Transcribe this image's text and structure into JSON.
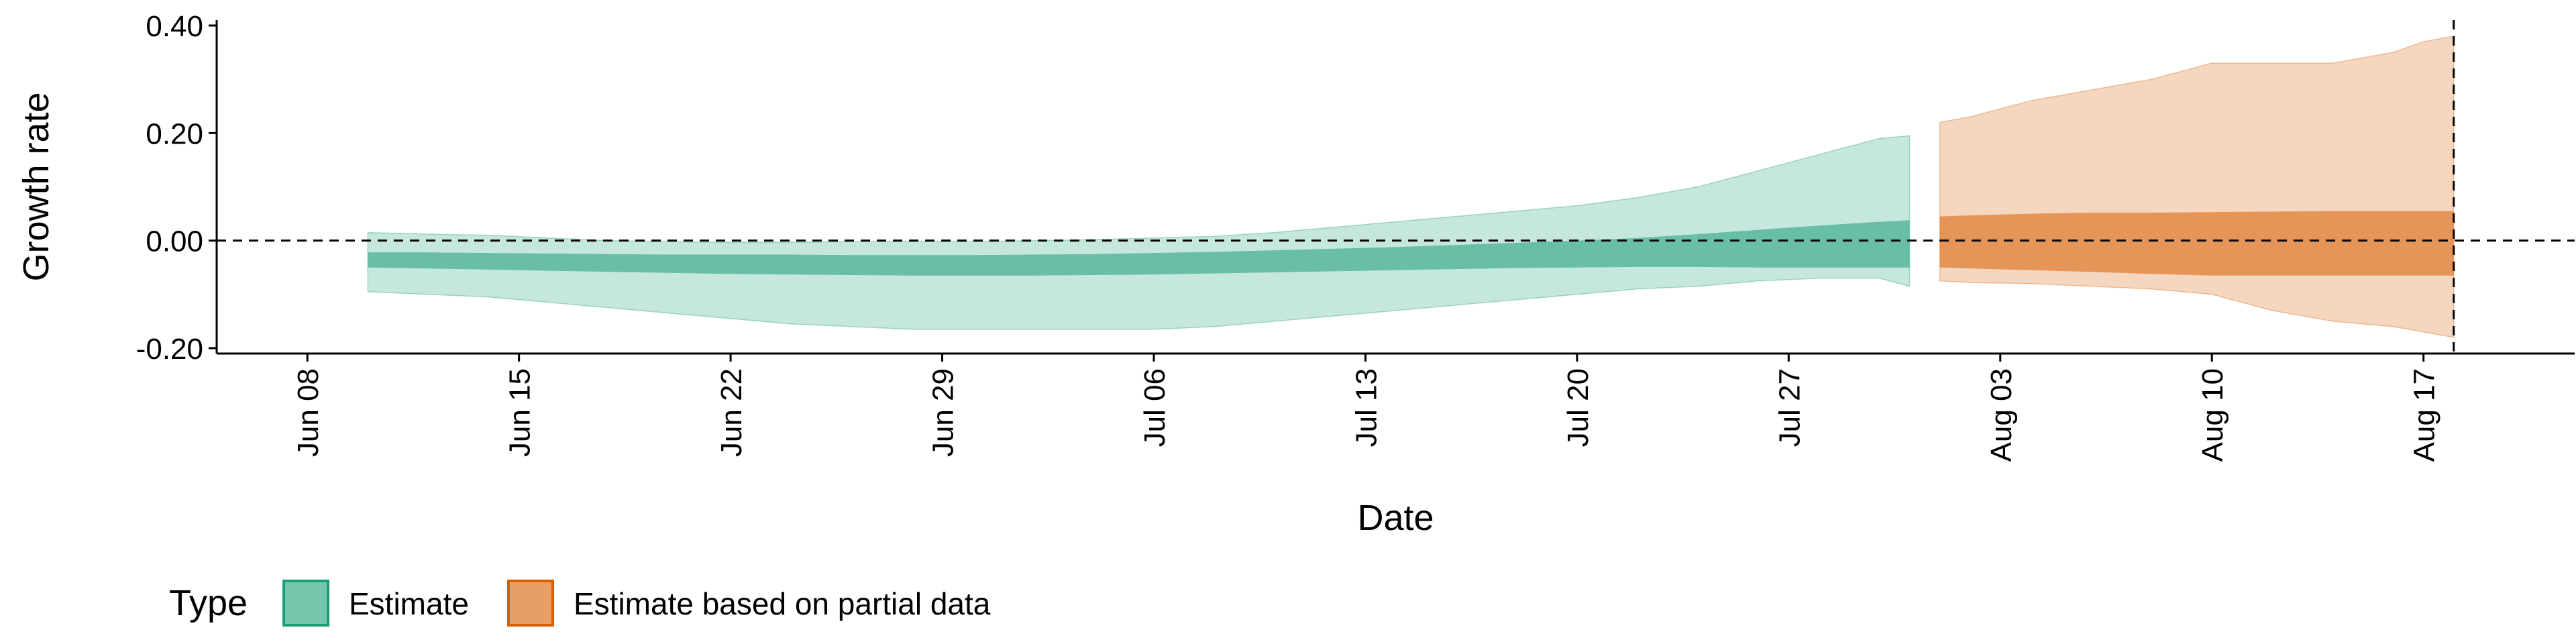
{
  "chart_data": {
    "type": "area",
    "xlabel": "Date",
    "ylabel": "Growth rate",
    "x_type": "date",
    "xlim": [
      "2020-06-05",
      "2020-08-22"
    ],
    "ylim": [
      -0.21,
      0.41
    ],
    "x_ticks": [
      {
        "date": "2020-06-08",
        "label": "Jun 08"
      },
      {
        "date": "2020-06-15",
        "label": "Jun 15"
      },
      {
        "date": "2020-06-22",
        "label": "Jun 22"
      },
      {
        "date": "2020-06-29",
        "label": "Jun 29"
      },
      {
        "date": "2020-07-06",
        "label": "Jul 06"
      },
      {
        "date": "2020-07-13",
        "label": "Jul 13"
      },
      {
        "date": "2020-07-20",
        "label": "Jul 20"
      },
      {
        "date": "2020-07-27",
        "label": "Jul 27"
      },
      {
        "date": "2020-08-03",
        "label": "Aug 03"
      },
      {
        "date": "2020-08-10",
        "label": "Aug 10"
      },
      {
        "date": "2020-08-17",
        "label": "Aug 17"
      }
    ],
    "y_ticks": [
      {
        "value": 0.4,
        "label": "0.40"
      },
      {
        "value": 0.2,
        "label": "0.20"
      },
      {
        "value": 0.0,
        "label": "0.00"
      },
      {
        "value": -0.2,
        "label": "-0.20"
      }
    ],
    "hline": 0.0,
    "vline": "2020-08-18",
    "grid": false,
    "legend": {
      "position": "bottom-left",
      "title": "Type",
      "entries": [
        {
          "label": "Estimate",
          "color": "#1b9e77"
        },
        {
          "label": "Estimate based on partial data",
          "color": "#d95f02"
        }
      ]
    },
    "series": [
      {
        "name": "Estimate",
        "color": "#1b9e77",
        "x": [
          "2020-06-10",
          "2020-06-12",
          "2020-06-14",
          "2020-06-16",
          "2020-06-18",
          "2020-06-20",
          "2020-06-22",
          "2020-06-24",
          "2020-06-26",
          "2020-06-28",
          "2020-06-30",
          "2020-07-02",
          "2020-07-04",
          "2020-07-06",
          "2020-07-08",
          "2020-07-10",
          "2020-07-12",
          "2020-07-14",
          "2020-07-16",
          "2020-07-18",
          "2020-07-20",
          "2020-07-22",
          "2020-07-24",
          "2020-07-26",
          "2020-07-28",
          "2020-07-30",
          "2020-07-31"
        ],
        "outer_upper": [
          0.015,
          0.012,
          0.01,
          0.005,
          0.0,
          -0.002,
          -0.003,
          -0.003,
          -0.002,
          -0.002,
          -0.002,
          0.0,
          0.002,
          0.005,
          0.008,
          0.015,
          0.025,
          0.035,
          0.045,
          0.055,
          0.065,
          0.08,
          0.1,
          0.13,
          0.16,
          0.19,
          0.195
        ],
        "inner_upper": [
          -0.022,
          -0.022,
          -0.023,
          -0.024,
          -0.025,
          -0.026,
          -0.026,
          -0.026,
          -0.027,
          -0.027,
          -0.027,
          -0.026,
          -0.025,
          -0.023,
          -0.021,
          -0.018,
          -0.015,
          -0.012,
          -0.008,
          -0.004,
          0.0,
          0.005,
          0.012,
          0.02,
          0.028,
          0.035,
          0.038
        ],
        "inner_lower": [
          -0.05,
          -0.052,
          -0.054,
          -0.056,
          -0.058,
          -0.06,
          -0.062,
          -0.063,
          -0.064,
          -0.065,
          -0.065,
          -0.065,
          -0.064,
          -0.063,
          -0.061,
          -0.059,
          -0.057,
          -0.055,
          -0.053,
          -0.051,
          -0.05,
          -0.049,
          -0.049,
          -0.05,
          -0.05,
          -0.05,
          -0.05
        ],
        "outer_lower": [
          -0.095,
          -0.1,
          -0.105,
          -0.115,
          -0.125,
          -0.135,
          -0.145,
          -0.155,
          -0.16,
          -0.165,
          -0.165,
          -0.165,
          -0.165,
          -0.165,
          -0.16,
          -0.15,
          -0.14,
          -0.13,
          -0.12,
          -0.11,
          -0.1,
          -0.09,
          -0.085,
          -0.075,
          -0.07,
          -0.07,
          -0.085
        ]
      },
      {
        "name": "Estimate based on partial data",
        "color": "#d95f02",
        "x": [
          "2020-08-01",
          "2020-08-02",
          "2020-08-04",
          "2020-08-06",
          "2020-08-08",
          "2020-08-10",
          "2020-08-12",
          "2020-08-14",
          "2020-08-16",
          "2020-08-17",
          "2020-08-18"
        ],
        "outer_upper": [
          0.22,
          0.23,
          0.26,
          0.28,
          0.3,
          0.33,
          0.33,
          0.33,
          0.35,
          0.37,
          0.38
        ],
        "inner_upper": [
          0.045,
          0.047,
          0.05,
          0.052,
          0.052,
          0.053,
          0.054,
          0.055,
          0.055,
          0.055,
          0.055
        ],
        "inner_lower": [
          -0.05,
          -0.052,
          -0.055,
          -0.058,
          -0.062,
          -0.065,
          -0.065,
          -0.065,
          -0.065,
          -0.065,
          -0.065
        ],
        "outer_lower": [
          -0.075,
          -0.078,
          -0.08,
          -0.085,
          -0.09,
          -0.1,
          -0.13,
          -0.15,
          -0.16,
          -0.17,
          -0.18
        ]
      }
    ]
  }
}
